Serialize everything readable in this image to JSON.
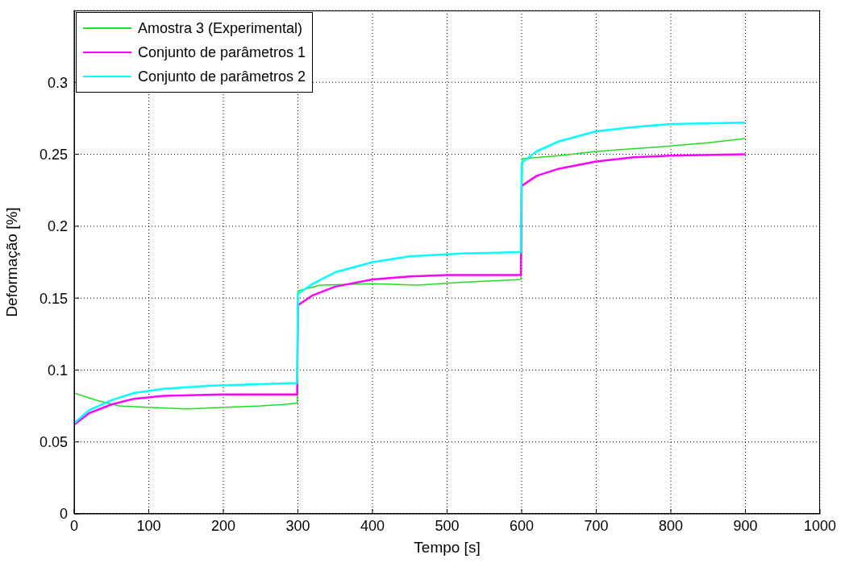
{
  "chart_data": {
    "type": "line",
    "xlabel": "Tempo [s]",
    "ylabel": "Deformação [%]",
    "xlim": [
      0,
      1000
    ],
    "xticks": [
      0,
      100,
      200,
      300,
      400,
      500,
      600,
      700,
      800,
      900,
      1000
    ],
    "ylim": [
      0,
      0.35
    ],
    "yticks": [
      0,
      0.05,
      0.1,
      0.15,
      0.2,
      0.25,
      0.3
    ],
    "grid": true,
    "legend": "top left",
    "line_style": "solid",
    "marker": "none",
    "series": [
      {
        "name": "Amostra 3 (Experimental)",
        "color": "#22dd22",
        "x": [
          0,
          30,
          60,
          100,
          150,
          200,
          250,
          280,
          299,
          300,
          330,
          400,
          460,
          520,
          560,
          599,
          601,
          650,
          700,
          780,
          850,
          900
        ],
        "values": [
          0.084,
          0.079,
          0.075,
          0.074,
          0.073,
          0.074,
          0.075,
          0.076,
          0.077,
          0.155,
          0.159,
          0.16,
          0.159,
          0.161,
          0.162,
          0.163,
          0.247,
          0.249,
          0.252,
          0.255,
          0.258,
          0.261
        ]
      },
      {
        "name": "Conjunto de parâmetros 1",
        "color": "#ff00ff",
        "x": [
          0,
          20,
          50,
          80,
          120,
          200,
          299,
          300,
          320,
          350,
          400,
          450,
          500,
          599,
          600,
          620,
          650,
          700,
          750,
          800,
          900
        ],
        "values": [
          0.062,
          0.07,
          0.076,
          0.08,
          0.082,
          0.083,
          0.083,
          0.145,
          0.152,
          0.158,
          0.163,
          0.165,
          0.166,
          0.166,
          0.228,
          0.235,
          0.24,
          0.245,
          0.248,
          0.249,
          0.25
        ]
      },
      {
        "name": "Conjunto de parâmetros 2",
        "color": "#00ffff",
        "x": [
          0,
          20,
          50,
          80,
          120,
          180,
          240,
          299,
          300,
          320,
          350,
          400,
          450,
          520,
          599,
          600,
          620,
          650,
          700,
          750,
          800,
          900
        ],
        "values": [
          0.063,
          0.072,
          0.079,
          0.084,
          0.087,
          0.089,
          0.09,
          0.091,
          0.153,
          0.16,
          0.168,
          0.175,
          0.179,
          0.181,
          0.182,
          0.244,
          0.252,
          0.259,
          0.266,
          0.269,
          0.271,
          0.272
        ]
      }
    ]
  }
}
